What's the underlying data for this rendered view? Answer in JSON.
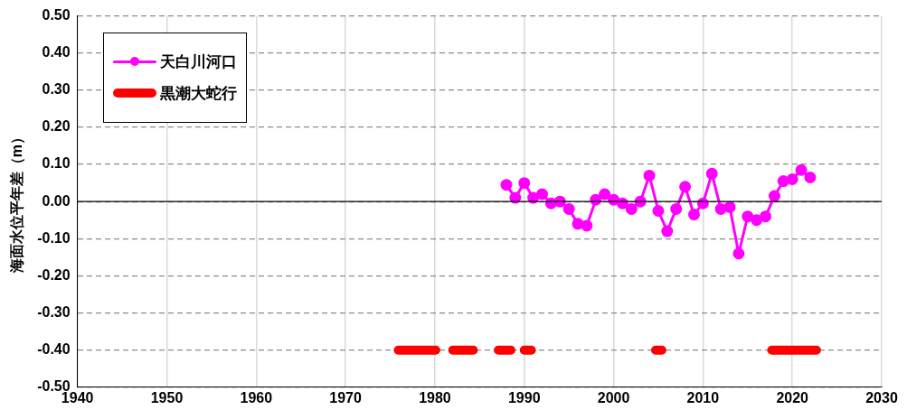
{
  "chart_data": {
    "type": "line",
    "ylabel": "海面水位平年差（m）",
    "xlim": [
      1940,
      2030
    ],
    "xticks": [
      1940,
      1950,
      1960,
      1970,
      1980,
      1990,
      2000,
      2010,
      2020,
      2030
    ],
    "ylim": [
      -0.5,
      0.5
    ],
    "yticks": [
      {
        "value": -0.5,
        "label": "-0.50"
      },
      {
        "value": -0.4,
        "label": "-0.40"
      },
      {
        "value": -0.3,
        "label": "-0.30"
      },
      {
        "value": -0.2,
        "label": "-0.20"
      },
      {
        "value": -0.1,
        "label": "-0.10"
      },
      {
        "value": 0,
        "label": "0.00"
      },
      {
        "value": 0.1,
        "label": "0.10"
      },
      {
        "value": 0.2,
        "label": "0.20"
      },
      {
        "value": 0.3,
        "label": "0.30"
      },
      {
        "value": 0.4,
        "label": "0.40"
      },
      {
        "value": 0.5,
        "label": "0.50"
      }
    ],
    "grid": true,
    "legend": "top left",
    "ref_lines": [
      {
        "axis": "y",
        "value": 0,
        "color": "#000000"
      }
    ],
    "series": [
      {
        "name": "天白川河口",
        "color": "#ff00ff",
        "marker": "circle",
        "x": [
          1988,
          1989,
          1990,
          1991,
          1992,
          1993,
          1994,
          1995,
          1996,
          1997,
          1998,
          1999,
          2000,
          2001,
          2002,
          2003,
          2004,
          2005,
          2006,
          2007,
          2008,
          2009,
          2010,
          2011,
          2012,
          2013,
          2014,
          2015,
          2016,
          2017,
          2018,
          2019,
          2020,
          2021,
          2022
        ],
        "values": [
          0.045,
          0.01,
          0.05,
          0.01,
          0.02,
          -0.005,
          0.0,
          -0.02,
          -0.06,
          -0.065,
          0.005,
          0.02,
          0.005,
          -0.005,
          -0.02,
          0.0,
          0.07,
          -0.025,
          -0.08,
          -0.02,
          0.04,
          -0.035,
          -0.005,
          0.075,
          -0.02,
          -0.015,
          -0.14,
          -0.04,
          -0.05,
          -0.04,
          0.015,
          0.055,
          0.06,
          0.085,
          0.065
        ]
      },
      {
        "name": "黒潮大蛇行",
        "color": "#ff0000",
        "marker": "none",
        "x": [
          1975.9,
          1980.1,
          1981,
          1982.0,
          1984.3,
          1985,
          1987.1,
          1988.5,
          1989,
          1990.0,
          1990.8,
          1997,
          2004.7,
          2005.4,
          2010,
          2017.7,
          2022.7
        ],
        "values": [
          -0.4,
          -0.4,
          null,
          -0.4,
          -0.4,
          null,
          -0.4,
          -0.4,
          null,
          -0.4,
          -0.4,
          null,
          -0.4,
          -0.4,
          null,
          -0.4,
          -0.4
        ]
      }
    ]
  }
}
